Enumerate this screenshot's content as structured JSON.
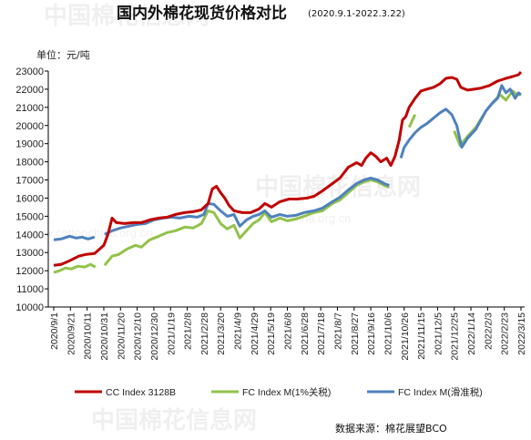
{
  "watermark": {
    "text": "中国棉花信息网",
    "url": "www.cottonchina.org.cn"
  },
  "chart_data": {
    "type": "line",
    "title": "国内外棉花现货价格对比",
    "subtitle": "(2020.9.1-2022.3.22)",
    "ylabel": "单位：元/吨",
    "ylim": [
      10000,
      23000
    ],
    "yticks": [
      10000,
      11000,
      12000,
      13000,
      14000,
      15000,
      16000,
      17000,
      18000,
      19000,
      20000,
      21000,
      22000,
      23000
    ],
    "xlim": [
      "2020-09-01",
      "2022-03-15"
    ],
    "xtick_labels": [
      "2020/9/1",
      "2020/9/21",
      "2020/10/11",
      "2020/10/31",
      "2020/11/20",
      "2020/12/10",
      "2020/12/30",
      "2021/1/19",
      "2021/2/8",
      "2021/2/28",
      "2021/3/20",
      "2021/4/9",
      "2021/4/29",
      "2021/5/19",
      "2021/6/8",
      "2021/6/28",
      "2021/7/18",
      "2021/8/7",
      "2021/8/27",
      "2021/9/16",
      "2021/10/6",
      "2021/10/26",
      "2021/11/15",
      "2021/12/5",
      "2021/12/25",
      "2022/1/14",
      "2022/2/3",
      "2022/2/23",
      "2022/3/15"
    ],
    "grid": false,
    "legend": "bottom",
    "source": "数据来源：棉花展望BCO",
    "series": [
      {
        "name": "CC Index 3128B",
        "color": "#c00000",
        "points": [
          [
            "2020-09-01",
            12300
          ],
          [
            "2020-09-10",
            12350
          ],
          [
            "2020-09-20",
            12550
          ],
          [
            "2020-10-01",
            12800
          ],
          [
            "2020-10-10",
            12900
          ],
          [
            "2020-10-20",
            12950
          ],
          [
            "2020-10-31",
            13400
          ],
          [
            "2020-11-05",
            14000
          ],
          [
            "2020-11-10",
            14900
          ],
          [
            "2020-11-15",
            14650
          ],
          [
            "2020-11-25",
            14600
          ],
          [
            "2020-12-05",
            14650
          ],
          [
            "2020-12-15",
            14650
          ],
          [
            "2020-12-25",
            14800
          ],
          [
            "2021-01-05",
            14900
          ],
          [
            "2021-01-15",
            14950
          ],
          [
            "2021-01-25",
            15100
          ],
          [
            "2021-02-05",
            15200
          ],
          [
            "2021-02-15",
            15250
          ],
          [
            "2021-02-25",
            15350
          ],
          [
            "2021-03-05",
            15700
          ],
          [
            "2021-03-10",
            16500
          ],
          [
            "2021-03-15",
            16650
          ],
          [
            "2021-03-20",
            16300
          ],
          [
            "2021-03-25",
            16000
          ],
          [
            "2021-03-30",
            15600
          ],
          [
            "2021-04-05",
            15300
          ],
          [
            "2021-04-15",
            15200
          ],
          [
            "2021-04-25",
            15200
          ],
          [
            "2021-05-05",
            15400
          ],
          [
            "2021-05-12",
            15700
          ],
          [
            "2021-05-20",
            15500
          ],
          [
            "2021-05-30",
            15800
          ],
          [
            "2021-06-10",
            15950
          ],
          [
            "2021-06-20",
            15950
          ],
          [
            "2021-07-01",
            16000
          ],
          [
            "2021-07-10",
            16100
          ],
          [
            "2021-07-20",
            16400
          ],
          [
            "2021-08-01",
            16800
          ],
          [
            "2021-08-10",
            17100
          ],
          [
            "2021-08-20",
            17700
          ],
          [
            "2021-08-30",
            17950
          ],
          [
            "2021-09-05",
            17800
          ],
          [
            "2021-09-10",
            18200
          ],
          [
            "2021-09-16",
            18500
          ],
          [
            "2021-09-22",
            18300
          ],
          [
            "2021-09-28",
            18000
          ],
          [
            "2021-10-05",
            18200
          ],
          [
            "2021-10-10",
            17800
          ],
          [
            "2021-10-15",
            18300
          ],
          [
            "2021-10-20",
            19200
          ],
          [
            "2021-10-24",
            20300
          ],
          [
            "2021-10-28",
            20500
          ],
          [
            "2021-11-01",
            21000
          ],
          [
            "2021-11-08",
            21500
          ],
          [
            "2021-11-15",
            21900
          ],
          [
            "2021-11-22",
            22000
          ],
          [
            "2021-11-30",
            22100
          ],
          [
            "2021-12-08",
            22300
          ],
          [
            "2021-12-15",
            22600
          ],
          [
            "2021-12-22",
            22650
          ],
          [
            "2021-12-28",
            22550
          ],
          [
            "2022-01-02",
            22100
          ],
          [
            "2022-01-10",
            21950
          ],
          [
            "2022-01-18",
            22000
          ],
          [
            "2022-01-25",
            22050
          ],
          [
            "2022-02-05",
            22200
          ],
          [
            "2022-02-15",
            22450
          ],
          [
            "2022-02-25",
            22600
          ],
          [
            "2022-03-05",
            22700
          ],
          [
            "2022-03-12",
            22800
          ],
          [
            "2022-03-15",
            22950
          ]
        ]
      },
      {
        "name": "FC Index M(1%关税)",
        "color": "#92c24a",
        "points": [
          [
            "2020-09-01",
            11900
          ],
          [
            "2020-09-08",
            12000
          ],
          [
            "2020-09-15",
            12150
          ],
          [
            "2020-09-22",
            12100
          ],
          [
            "2020-09-30",
            12250
          ],
          [
            "2020-10-08",
            12200
          ],
          [
            "2020-10-15",
            12350
          ],
          [
            "2020-10-21",
            12200
          ],
          [
            "2020-10-31",
            null
          ],
          [
            "2020-11-01",
            12300
          ],
          [
            "2020-11-10",
            12800
          ],
          [
            "2020-11-18",
            12900
          ],
          [
            "2020-11-28",
            13200
          ],
          [
            "2020-12-08",
            13400
          ],
          [
            "2020-12-15",
            13300
          ],
          [
            "2020-12-25",
            13700
          ],
          [
            "2021-01-05",
            13900
          ],
          [
            "2021-01-15",
            14100
          ],
          [
            "2021-01-25",
            14200
          ],
          [
            "2021-02-05",
            14400
          ],
          [
            "2021-02-15",
            14350
          ],
          [
            "2021-02-25",
            14600
          ],
          [
            "2021-03-05",
            15300
          ],
          [
            "2021-03-12",
            15200
          ],
          [
            "2021-03-20",
            14600
          ],
          [
            "2021-03-28",
            14300
          ],
          [
            "2021-04-05",
            14500
          ],
          [
            "2021-04-12",
            13800
          ],
          [
            "2021-04-20",
            14200
          ],
          [
            "2021-04-28",
            14600
          ],
          [
            "2021-05-05",
            14800
          ],
          [
            "2021-05-12",
            15200
          ],
          [
            "2021-05-20",
            14700
          ],
          [
            "2021-05-30",
            14900
          ],
          [
            "2021-06-08",
            14750
          ],
          [
            "2021-06-18",
            14850
          ],
          [
            "2021-06-28",
            15000
          ],
          [
            "2021-07-10",
            15200
          ],
          [
            "2021-07-20",
            15300
          ],
          [
            "2021-08-01",
            15700
          ],
          [
            "2021-08-10",
            15900
          ],
          [
            "2021-08-20",
            16300
          ],
          [
            "2021-08-30",
            16700
          ],
          [
            "2021-09-08",
            16900
          ],
          [
            "2021-09-16",
            17000
          ],
          [
            "2021-09-24",
            16900
          ],
          [
            "2021-10-02",
            16700
          ],
          [
            "2021-10-08",
            16600
          ],
          [
            "2021-10-12",
            null
          ],
          [
            "2021-11-01",
            19900
          ],
          [
            "2021-11-05",
            20300
          ],
          [
            "2021-11-08",
            20600
          ],
          [
            "2021-11-12",
            null
          ],
          [
            "2021-12-25",
            19700
          ],
          [
            "2022-01-01",
            18900
          ],
          [
            "2022-01-10",
            19400
          ],
          [
            "2022-01-20",
            19900
          ],
          [
            "2022-02-01",
            20800
          ],
          [
            "2022-02-10",
            21300
          ],
          [
            "2022-02-18",
            21700
          ],
          [
            "2022-02-25",
            21400
          ],
          [
            "2022-03-05",
            21900
          ],
          [
            "2022-03-10",
            21700
          ],
          [
            "2022-03-15",
            21700
          ]
        ]
      },
      {
        "name": "FC Index M(滑准税)",
        "color": "#4f81bd",
        "points": [
          [
            "2020-09-01",
            13700
          ],
          [
            "2020-09-10",
            13750
          ],
          [
            "2020-09-20",
            13900
          ],
          [
            "2020-09-28",
            13800
          ],
          [
            "2020-10-05",
            13850
          ],
          [
            "2020-10-12",
            13750
          ],
          [
            "2020-10-20",
            13850
          ],
          [
            "2020-10-31",
            null
          ],
          [
            "2020-11-01",
            14000
          ],
          [
            "2020-11-10",
            14200
          ],
          [
            "2020-11-20",
            14350
          ],
          [
            "2020-11-30",
            14450
          ],
          [
            "2020-12-10",
            14550
          ],
          [
            "2020-12-20",
            14600
          ],
          [
            "2020-12-30",
            14800
          ],
          [
            "2021-01-10",
            14900
          ],
          [
            "2021-01-20",
            14950
          ],
          [
            "2021-01-30",
            14900
          ],
          [
            "2021-02-10",
            15000
          ],
          [
            "2021-02-20",
            14950
          ],
          [
            "2021-02-28",
            15100
          ],
          [
            "2021-03-05",
            15700
          ],
          [
            "2021-03-12",
            15650
          ],
          [
            "2021-03-20",
            15300
          ],
          [
            "2021-03-28",
            15000
          ],
          [
            "2021-04-05",
            15100
          ],
          [
            "2021-04-12",
            14450
          ],
          [
            "2021-04-20",
            14800
          ],
          [
            "2021-04-28",
            15000
          ],
          [
            "2021-05-05",
            15100
          ],
          [
            "2021-05-12",
            15300
          ],
          [
            "2021-05-20",
            14950
          ],
          [
            "2021-05-30",
            15100
          ],
          [
            "2021-06-08",
            15000
          ],
          [
            "2021-06-18",
            15050
          ],
          [
            "2021-06-28",
            15200
          ],
          [
            "2021-07-10",
            15300
          ],
          [
            "2021-07-20",
            15450
          ],
          [
            "2021-08-01",
            15800
          ],
          [
            "2021-08-10",
            16050
          ],
          [
            "2021-08-20",
            16450
          ],
          [
            "2021-08-30",
            16800
          ],
          [
            "2021-09-08",
            17000
          ],
          [
            "2021-09-16",
            17100
          ],
          [
            "2021-09-24",
            17000
          ],
          [
            "2021-10-02",
            16800
          ],
          [
            "2021-10-08",
            16700
          ],
          [
            "2021-10-12",
            null
          ],
          [
            "2021-10-22",
            18200
          ],
          [
            "2021-10-26",
            18800
          ],
          [
            "2021-11-01",
            19200
          ],
          [
            "2021-11-08",
            19600
          ],
          [
            "2021-11-15",
            19900
          ],
          [
            "2021-11-22",
            20100
          ],
          [
            "2021-11-30",
            20400
          ],
          [
            "2021-12-08",
            20700
          ],
          [
            "2021-12-15",
            20900
          ],
          [
            "2021-12-22",
            20600
          ],
          [
            "2021-12-28",
            20000
          ],
          [
            "2022-01-03",
            18800
          ],
          [
            "2022-01-10",
            19300
          ],
          [
            "2022-01-20",
            19800
          ],
          [
            "2022-02-01",
            20800
          ],
          [
            "2022-02-08",
            21200
          ],
          [
            "2022-02-15",
            21500
          ],
          [
            "2022-02-20",
            22200
          ],
          [
            "2022-02-25",
            21800
          ],
          [
            "2022-03-02",
            22000
          ],
          [
            "2022-03-08",
            21500
          ],
          [
            "2022-03-12",
            21800
          ],
          [
            "2022-03-15",
            21700
          ]
        ]
      }
    ]
  }
}
